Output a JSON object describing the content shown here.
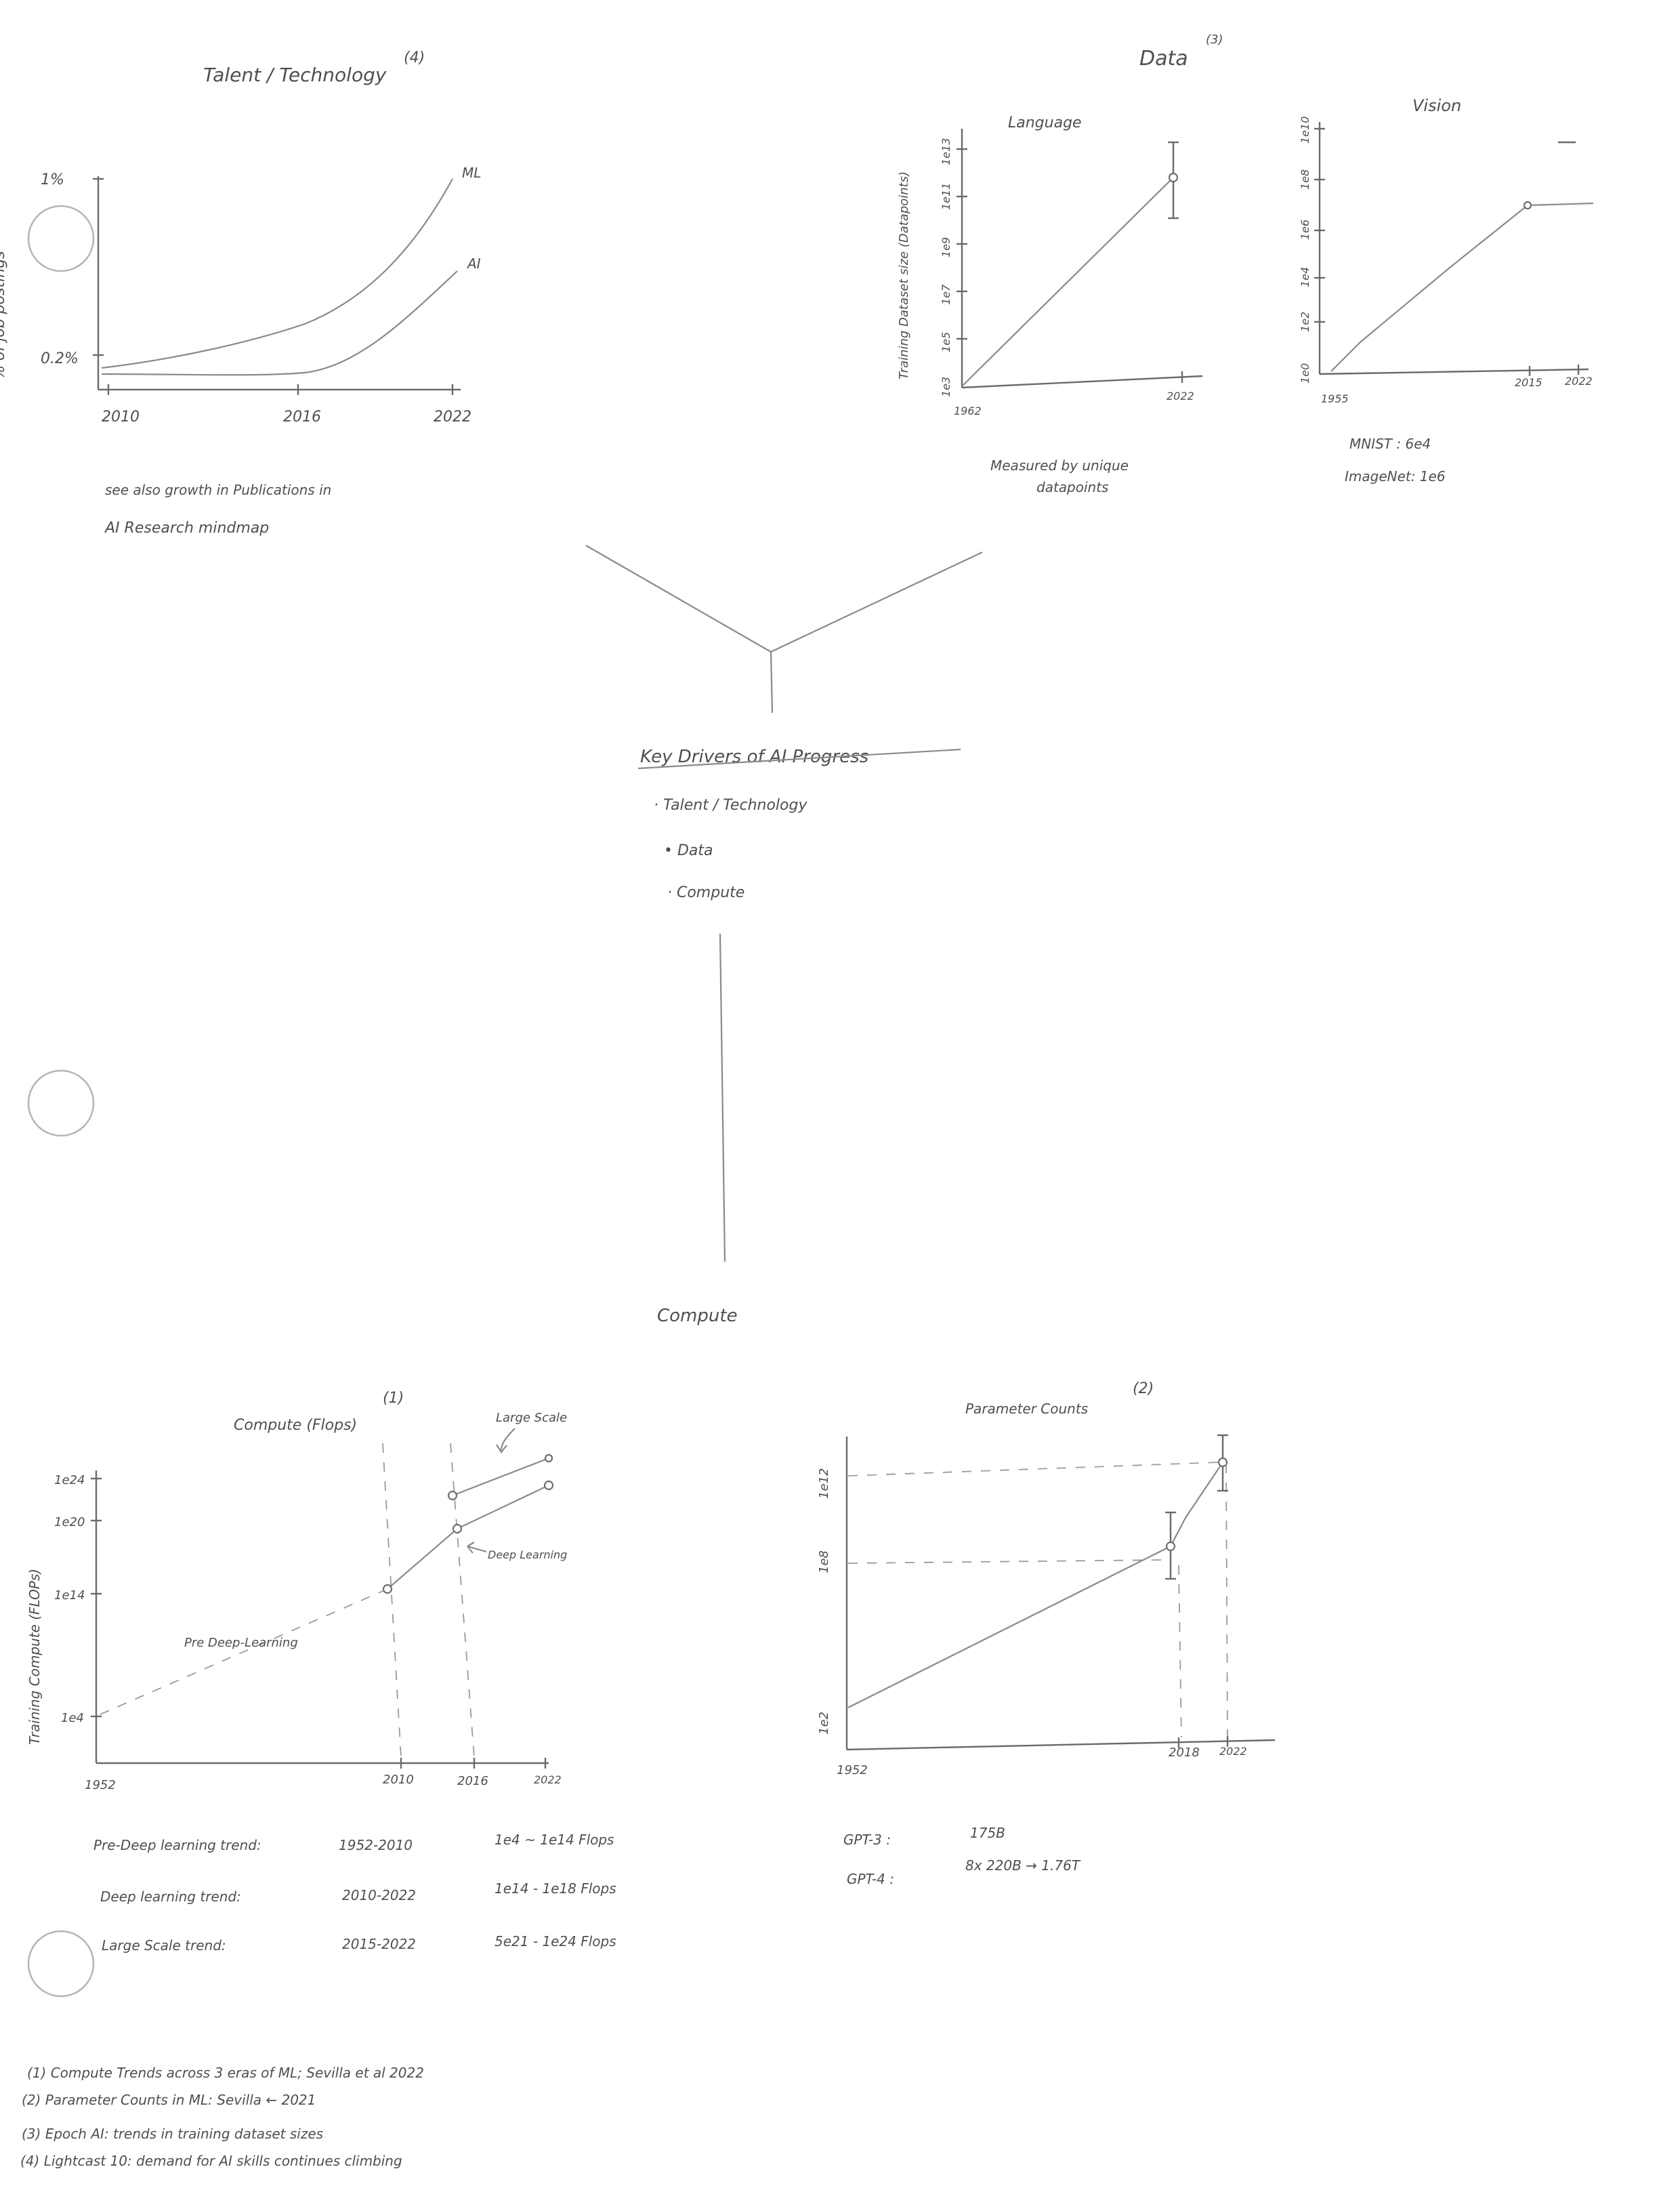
{
  "punch_holes": 3,
  "margin_text": "% of job postings",
  "talent": {
    "title": "Talent / Technology",
    "ref": "(4)",
    "y_ticks": [
      "1%",
      "0.2%"
    ],
    "x_ticks": [
      "2010",
      "2016",
      "2022"
    ],
    "series": [
      "ML",
      "AI"
    ],
    "note_line1": "see also growth in Publications in",
    "note_line2": "AI Research mindmap"
  },
  "data_section": {
    "title": "Data",
    "ref": "(3)",
    "language": {
      "title": "Language",
      "ylabel": "Training Dataset size (Datapoints)",
      "y_ticks": [
        "1e3",
        "1e5",
        "1e7",
        "1e9",
        "1e11",
        "1e13"
      ],
      "x_ticks": [
        "1962",
        "2022"
      ],
      "note_line1": "Measured by unique",
      "note_line2": "datapoints"
    },
    "vision": {
      "title": "Vision",
      "y_ticks": [
        "1e0",
        "1e2",
        "1e4",
        "1e6",
        "1e8",
        "1e10"
      ],
      "x_ticks": [
        "1955",
        "2015",
        "2022"
      ],
      "note1": "MNIST : 6e4",
      "note2": "ImageNet: 1e6"
    }
  },
  "center": {
    "title": "Key Drivers of AI Progress",
    "items": [
      "· Talent / Technology",
      "• Data",
      "· Compute"
    ],
    "compute_label": "Compute"
  },
  "compute_chart": {
    "title": "Compute (Flops)",
    "ref": "(1)",
    "ylabel": "Training Compute (FLOPs)",
    "y_ticks": [
      "1e24",
      "1e20",
      "1e14",
      "1e4"
    ],
    "x_ticks": [
      "1952",
      "2010",
      "2016",
      "2022"
    ],
    "labels": {
      "large": "Large Scale",
      "deep": "Deep Learning",
      "pre": "Pre Deep-Learning"
    }
  },
  "trends": [
    {
      "name": "Pre-Deep learning trend:",
      "years": "1952-2010",
      "range": "1e4 ~ 1e14 Flops"
    },
    {
      "name": "Deep learning trend:",
      "years": "2010-2022",
      "range": "1e14 - 1e18 Flops"
    },
    {
      "name": "Large Scale trend:",
      "years": "2015-2022",
      "range": "5e21 - 1e24 Flops"
    }
  ],
  "param_chart": {
    "title": "Parameter Counts",
    "ref": "(2)",
    "y_ticks": [
      "1e12",
      "1e8",
      "1e2"
    ],
    "x_ticks": [
      "1952",
      "2018",
      "2022"
    ]
  },
  "gpt": [
    {
      "model": "GPT-3 :",
      "value": "175B"
    },
    {
      "model": "GPT-4 :",
      "value": "8x 220B → 1.76T"
    }
  ],
  "references": [
    "(1) Compute Trends across 3 eras of ML; Sevilla et al 2022",
    "(2) Parameter Counts in ML: Sevilla ← 2021",
    "(3) Epoch AI: trends in training dataset sizes",
    "(4) Lightcast 10: demand for AI skills continues climbing"
  ]
}
